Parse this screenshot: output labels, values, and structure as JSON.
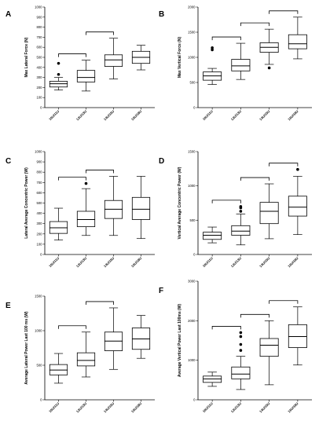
{
  "chart_data": [
    {
      "panel": "A",
      "type": "boxplot",
      "ylabel": "Max Lateral Force (N)",
      "ylim": [
        0,
        1000
      ],
      "yticks": [
        0,
        100,
        200,
        300,
        400,
        500,
        600,
        700,
        800,
        900,
        1000
      ],
      "categories": [
        "10U/11U",
        "12U/13U",
        "14U/15U",
        "16U/18U"
      ],
      "boxes": [
        {
          "whisker_low": 175,
          "q1": 205,
          "median": 237,
          "q3": 262,
          "whisker_high": 300,
          "outliers": [
            330,
            440
          ]
        },
        {
          "whisker_low": 165,
          "q1": 255,
          "median": 300,
          "q3": 370,
          "whisker_high": 472,
          "outliers": []
        },
        {
          "whisker_low": 285,
          "q1": 410,
          "median": 475,
          "q3": 525,
          "whisker_high": 690,
          "outliers": []
        },
        {
          "whisker_low": 375,
          "q1": 440,
          "median": 500,
          "q3": 560,
          "whisker_high": 620,
          "outliers": []
        }
      ],
      "brackets": [
        [
          0,
          1
        ],
        [
          1,
          2
        ]
      ]
    },
    {
      "panel": "B",
      "type": "boxplot",
      "ylabel": "Max Vertical Force (N)",
      "ylim": [
        0,
        2000
      ],
      "yticks": [
        0,
        500,
        1000,
        1500,
        2000
      ],
      "categories": [
        "10U/11U",
        "12U/13U",
        "14U/15U",
        "16U/18U"
      ],
      "boxes": [
        {
          "whisker_low": 460,
          "q1": 545,
          "median": 630,
          "q3": 710,
          "whisker_high": 780,
          "outliers": [
            1150,
            1190
          ]
        },
        {
          "whisker_low": 560,
          "q1": 730,
          "median": 830,
          "q3": 960,
          "whisker_high": 1280,
          "outliers": []
        },
        {
          "whisker_low": 860,
          "q1": 1100,
          "median": 1200,
          "q3": 1290,
          "whisker_high": 1560,
          "outliers": [
            790
          ]
        },
        {
          "whisker_low": 970,
          "q1": 1170,
          "median": 1270,
          "q3": 1450,
          "whisker_high": 1800,
          "outliers": []
        }
      ],
      "brackets": [
        [
          0,
          1
        ],
        [
          1,
          2
        ],
        [
          2,
          3
        ]
      ]
    },
    {
      "panel": "C",
      "type": "boxplot",
      "ylabel": "Lateral Average Concentric Power (W)",
      "ylim": [
        0,
        1000
      ],
      "yticks": [
        0,
        100,
        200,
        300,
        400,
        500,
        600,
        700,
        800,
        900,
        1000
      ],
      "categories": [
        "10U/11U",
        "12U/13U",
        "14U/15U",
        "16U/18U"
      ],
      "boxes": [
        {
          "whisker_low": 140,
          "q1": 205,
          "median": 260,
          "q3": 320,
          "whisker_high": 450,
          "outliers": []
        },
        {
          "whisker_low": 185,
          "q1": 270,
          "median": 340,
          "q3": 420,
          "whisker_high": 640,
          "outliers": [
            690
          ]
        },
        {
          "whisker_low": 185,
          "q1": 350,
          "median": 440,
          "q3": 525,
          "whisker_high": 760,
          "outliers": []
        },
        {
          "whisker_low": 155,
          "q1": 340,
          "median": 440,
          "q3": 555,
          "whisker_high": 760,
          "outliers": []
        }
      ],
      "brackets": [
        [
          0,
          1
        ],
        [
          1,
          2
        ]
      ]
    },
    {
      "panel": "D",
      "type": "boxplot",
      "ylabel": "Vertical Average Concentric Power (W)",
      "ylim": [
        0,
        1500
      ],
      "yticks": [
        0,
        500,
        1000,
        1500
      ],
      "categories": [
        "10U/11U",
        "12U/13U",
        "14U/15U",
        "16U/18U"
      ],
      "boxes": [
        {
          "whisker_low": 170,
          "q1": 220,
          "median": 280,
          "q3": 325,
          "whisker_high": 400,
          "outliers": []
        },
        {
          "whisker_low": 140,
          "q1": 280,
          "median": 340,
          "q3": 420,
          "whisker_high": 590,
          "outliers": [
            630,
            680,
            700
          ]
        },
        {
          "whisker_low": 230,
          "q1": 450,
          "median": 630,
          "q3": 760,
          "whisker_high": 1030,
          "outliers": []
        },
        {
          "whisker_low": 290,
          "q1": 560,
          "median": 690,
          "q3": 850,
          "whisker_high": 1140,
          "outliers": [
            1240
          ]
        }
      ],
      "brackets": [
        [
          0,
          1
        ],
        [
          1,
          2
        ],
        [
          2,
          3
        ]
      ]
    },
    {
      "panel": "E",
      "type": "boxplot",
      "ylabel": "Average Lateral Power Last 100 ms (W)",
      "ylim": [
        0,
        1500
      ],
      "yticks": [
        0,
        500,
        1000,
        1500
      ],
      "categories": [
        "10U/11U",
        "12U/13U",
        "14U/15U",
        "16U/18U"
      ],
      "boxes": [
        {
          "whisker_low": 240,
          "q1": 360,
          "median": 430,
          "q3": 510,
          "whisker_high": 670,
          "outliers": []
        },
        {
          "whisker_low": 330,
          "q1": 490,
          "median": 570,
          "q3": 680,
          "whisker_high": 980,
          "outliers": []
        },
        {
          "whisker_low": 440,
          "q1": 710,
          "median": 850,
          "q3": 980,
          "whisker_high": 1330,
          "outliers": []
        },
        {
          "whisker_low": 600,
          "q1": 730,
          "median": 880,
          "q3": 1040,
          "whisker_high": 1220,
          "outliers": []
        }
      ],
      "brackets": [
        [
          0,
          1
        ],
        [
          1,
          2
        ]
      ]
    },
    {
      "panel": "F",
      "type": "boxplot",
      "ylabel": "Average Vertical Power Last 100ms (W)",
      "ylim": [
        0,
        3000
      ],
      "yticks": [
        0,
        1000,
        2000,
        3000
      ],
      "categories": [
        "10U/11U",
        "12U/13U",
        "14U/15U",
        "16U/18U"
      ],
      "boxes": [
        {
          "whisker_low": 340,
          "q1": 440,
          "median": 530,
          "q3": 600,
          "whisker_high": 700,
          "outliers": []
        },
        {
          "whisker_low": 260,
          "q1": 530,
          "median": 650,
          "q3": 830,
          "whisker_high": 1100,
          "outliers": [
            1250,
            1400,
            1600,
            1700
          ]
        },
        {
          "whisker_low": 380,
          "q1": 1100,
          "median": 1380,
          "q3": 1550,
          "whisker_high": 2000,
          "outliers": []
        },
        {
          "whisker_low": 880,
          "q1": 1320,
          "median": 1600,
          "q3": 1900,
          "whisker_high": 2350,
          "outliers": []
        }
      ],
      "brackets": [
        [
          0,
          1
        ],
        [
          1,
          2
        ],
        [
          2,
          3
        ]
      ]
    }
  ]
}
